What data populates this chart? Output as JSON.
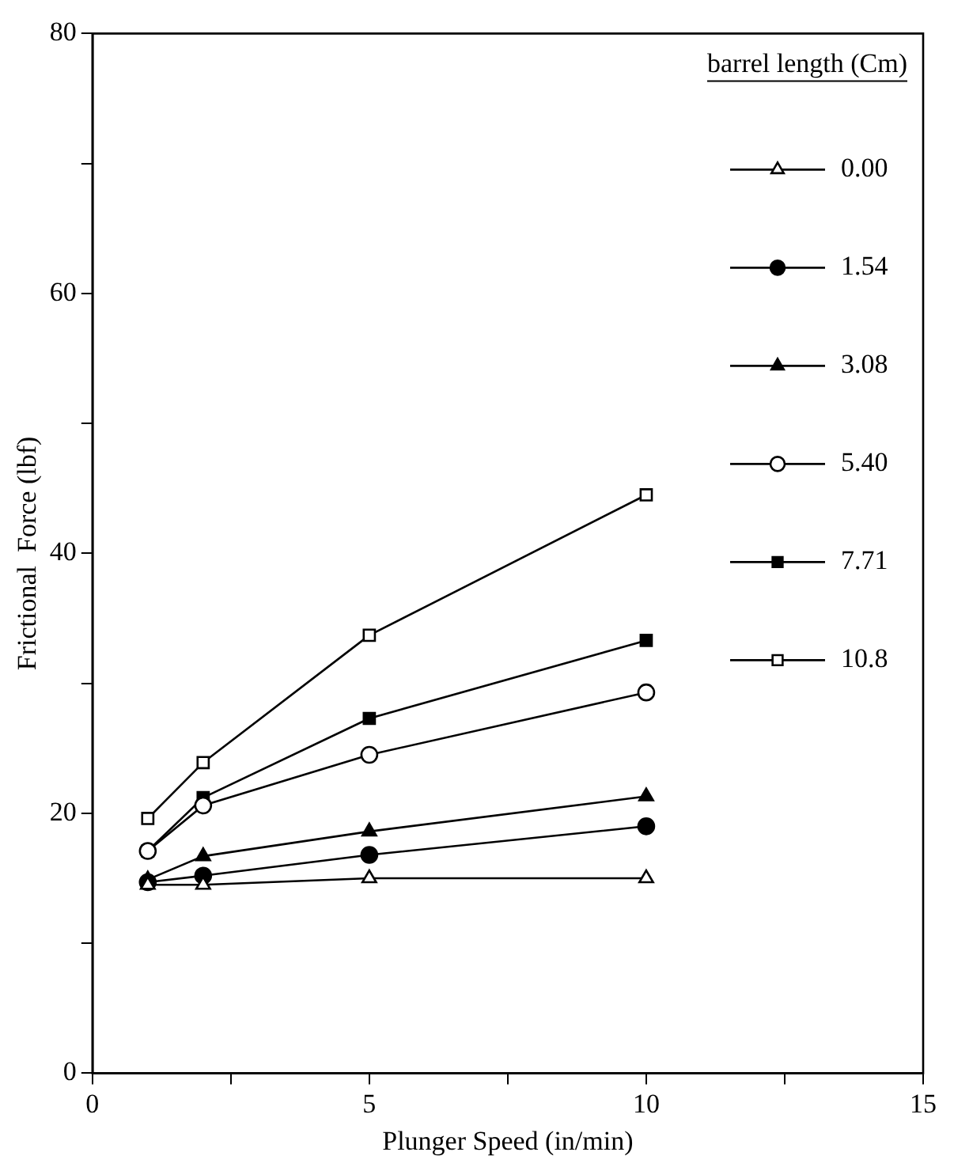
{
  "chart_data": {
    "type": "line",
    "xlabel": "Plunger Speed (in/min)",
    "ylabel": "Frictional  Force (lbf)",
    "legend_title": "barrel length (Cm)",
    "legend": "top right",
    "grid": false,
    "xlim": [
      0,
      15
    ],
    "xticks": [
      0,
      {
        "value": 2.5,
        "label": null
      },
      5,
      {
        "value": 7.5,
        "label": null
      },
      10,
      {
        "value": 12.5,
        "label": null
      },
      15
    ],
    "ylim": [
      0,
      80
    ],
    "yticks": [
      0,
      {
        "value": 10,
        "label": null
      },
      20,
      {
        "value": 30,
        "label": null
      },
      40,
      {
        "value": 50,
        "label": null
      },
      60,
      {
        "value": 70,
        "label": null
      },
      80
    ],
    "x": [
      1,
      2,
      5,
      10
    ],
    "series": [
      {
        "name": "0.00",
        "color": "#000000",
        "marker": "triangle",
        "values": [
          14.5,
          14.5,
          15.0,
          15.0
        ]
      },
      {
        "name": "1.54",
        "color": "#000000",
        "marker": "circle",
        "values": [
          14.7,
          15.2,
          16.8,
          19.0
        ]
      },
      {
        "name": "3.08",
        "color": "#000000",
        "marker": "triangle",
        "values": [
          14.9,
          16.7,
          18.6,
          21.3
        ]
      },
      {
        "name": "5.40",
        "color": "#000000",
        "marker": "circle",
        "values": [
          17.1,
          20.6,
          24.5,
          29.3
        ]
      },
      {
        "name": "7.71",
        "color": "#000000",
        "marker": "square",
        "values": [
          17.1,
          21.2,
          27.3,
          33.3
        ]
      },
      {
        "name": "10.8",
        "color": "#000000",
        "marker": "square",
        "values": [
          19.6,
          23.9,
          33.7,
          44.5
        ]
      }
    ]
  }
}
